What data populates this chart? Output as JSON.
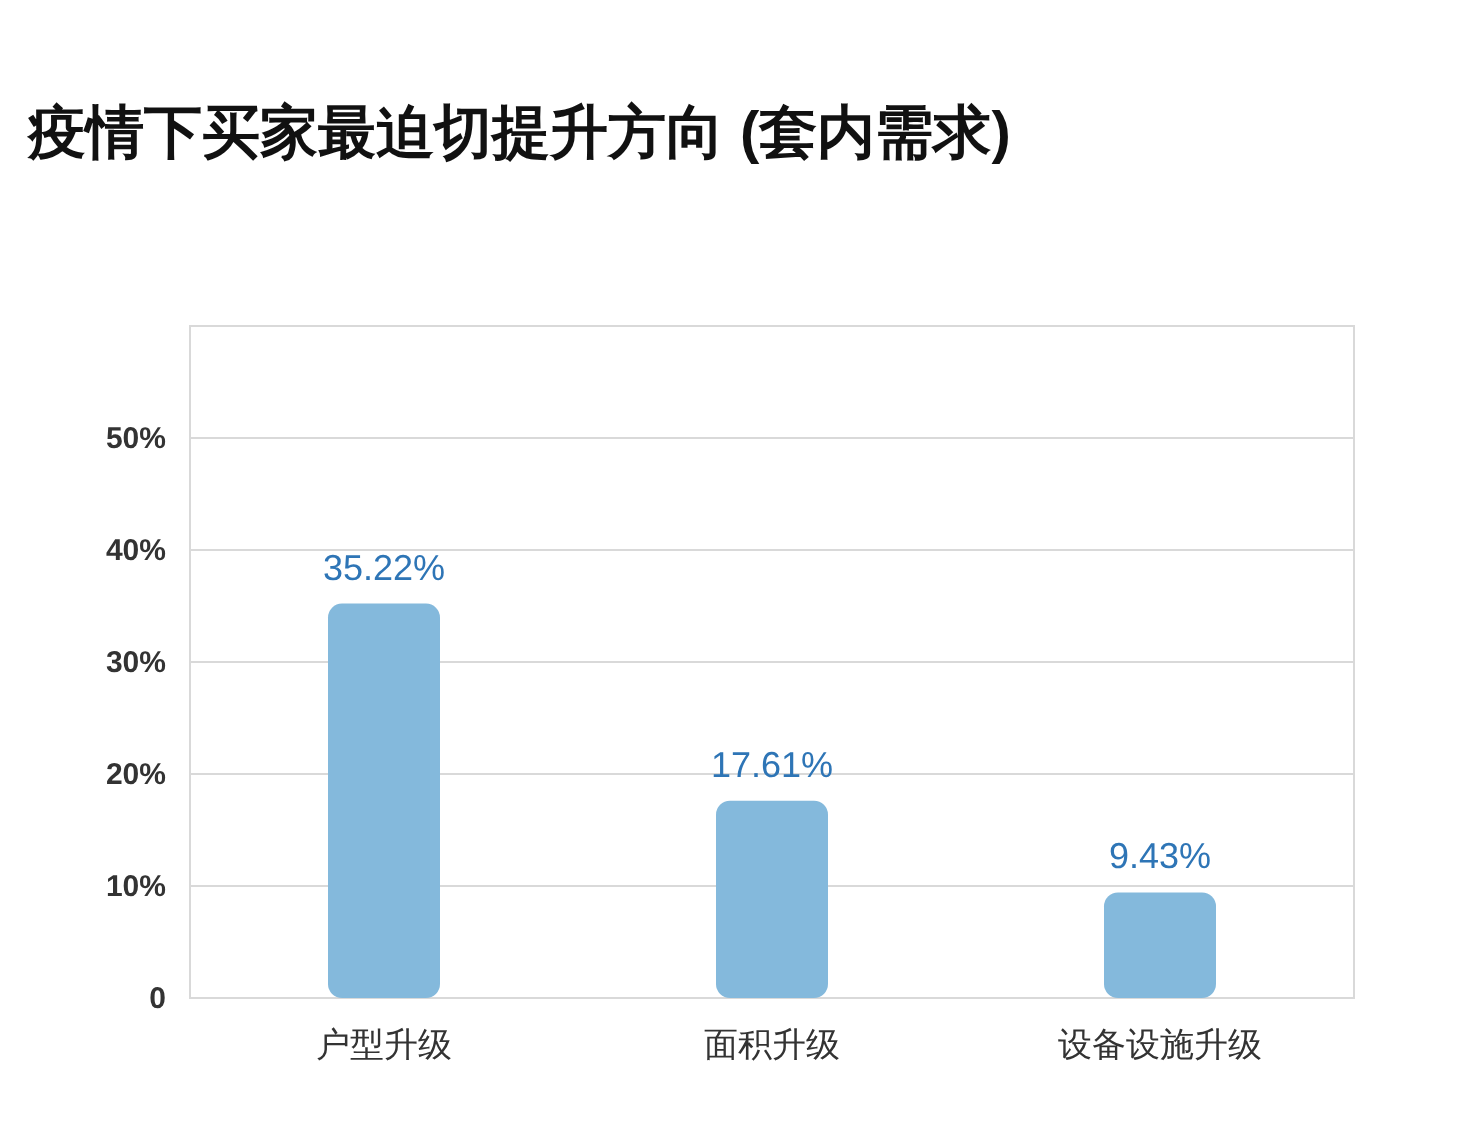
{
  "chart_data": {
    "type": "bar",
    "title": "疫情下买家最迫切提升方向 (套内需求)",
    "categories": [
      "户型升级",
      "面积升级",
      "设备设施升级"
    ],
    "values": [
      35.22,
      17.61,
      9.43
    ],
    "value_labels": [
      "35.22%",
      "17.61%",
      "9.43%"
    ],
    "color": "#84b9dc",
    "ylim": [
      0,
      60
    ],
    "yticks": [
      0,
      {
        "value": 10,
        "label": "10%"
      },
      {
        "value": 20,
        "label": "20%"
      },
      {
        "value": 30,
        "label": "30%"
      },
      {
        "value": 40,
        "label": "40%"
      },
      {
        "value": 50,
        "label": "50%"
      }
    ],
    "grid": "y"
  }
}
